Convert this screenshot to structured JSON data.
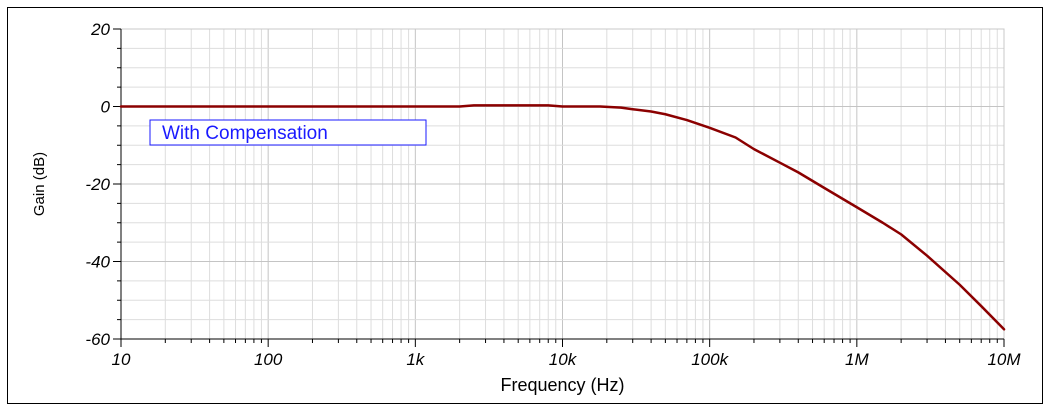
{
  "chart_data": {
    "type": "line",
    "title": "",
    "xlabel": "Frequency (Hz)",
    "ylabel": "Gain (dB)",
    "x_scale": "log",
    "xlim": [
      10,
      10000000
    ],
    "ylim": [
      -60,
      20
    ],
    "x_ticks": [
      {
        "value": 10,
        "label": "10"
      },
      {
        "value": 100,
        "label": "100"
      },
      {
        "value": 1000,
        "label": "1k"
      },
      {
        "value": 10000,
        "label": "10k"
      },
      {
        "value": 100000,
        "label": "100k"
      },
      {
        "value": 1000000,
        "label": "1M"
      },
      {
        "value": 10000000,
        "label": "10M"
      }
    ],
    "y_ticks": [
      {
        "value": 20,
        "label": "20"
      },
      {
        "value": 0,
        "label": "0"
      },
      {
        "value": -20,
        "label": "-20"
      },
      {
        "value": -40,
        "label": "-40"
      },
      {
        "value": -60,
        "label": "-60"
      }
    ],
    "grid": true,
    "legend": {
      "text": "With Compensation",
      "position": "upper-left",
      "color": "#1a1aff"
    },
    "series": [
      {
        "name": "With Compensation",
        "color": "#8b0000",
        "x": [
          10,
          100,
          1000,
          2000,
          2500,
          5000,
          8000,
          10000,
          18000,
          25000,
          30000,
          40000,
          50000,
          70000,
          100000,
          150000,
          200000,
          300000,
          400000,
          600000,
          1000000,
          1500000,
          2000000,
          3000000,
          5000000,
          7000000,
          10000000
        ],
        "y": [
          0,
          0,
          0,
          0,
          0.3,
          0.3,
          0.3,
          0,
          0,
          -0.3,
          -0.7,
          -1.3,
          -2,
          -3.5,
          -5.5,
          -8,
          -11,
          -14.5,
          -17,
          -21,
          -26,
          -30,
          -33,
          -38.5,
          -46,
          -51.5,
          -57.5
        ]
      }
    ]
  }
}
